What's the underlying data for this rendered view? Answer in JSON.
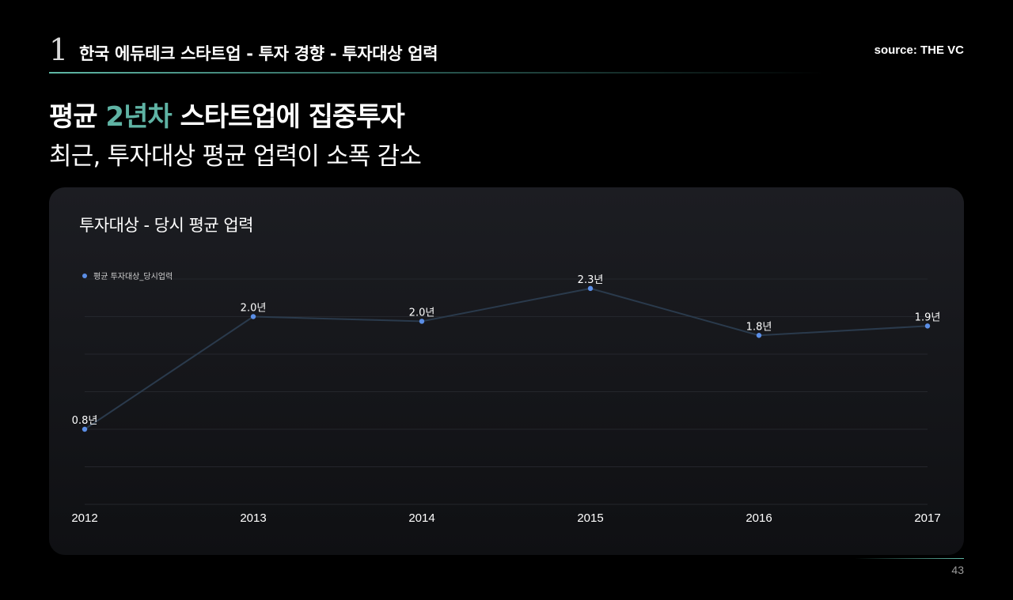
{
  "header": {
    "section_number": "1",
    "title": "한국 에듀테크 스타트업 - 투자 경향 - 투자대상 업력",
    "source": "source: THE VC"
  },
  "headline": {
    "prefix": "평균 ",
    "accent": "2년차",
    "suffix": " 스타트업에 집중투자",
    "subheadline": "최근, 투자대상 평균 업력이 소폭 감소",
    "accent_color": "#5fb3a4"
  },
  "chart_card": {
    "title": "투자대상 - 당시 평균 업력"
  },
  "chart_data": {
    "type": "line",
    "title": "투자대상 - 당시 평균 업력",
    "categories": [
      "2012",
      "2013",
      "2014",
      "2015",
      "2016",
      "2017"
    ],
    "series": [
      {
        "name": "평균 투자대상_당시업력",
        "values": [
          0.8,
          2.0,
          1.95,
          2.3,
          1.8,
          1.9
        ],
        "labels": [
          "0.8년",
          "2.0년",
          "2.0년",
          "2.3년",
          "1.8년",
          "1.9년"
        ],
        "color": "#5b8ee6",
        "line_color": "#2a3a4c"
      }
    ],
    "ylim": [
      0,
      2.4
    ],
    "grid": true,
    "legend": "top-left",
    "xlabel": "",
    "ylabel": ""
  },
  "footer": {
    "page_number": "43"
  }
}
